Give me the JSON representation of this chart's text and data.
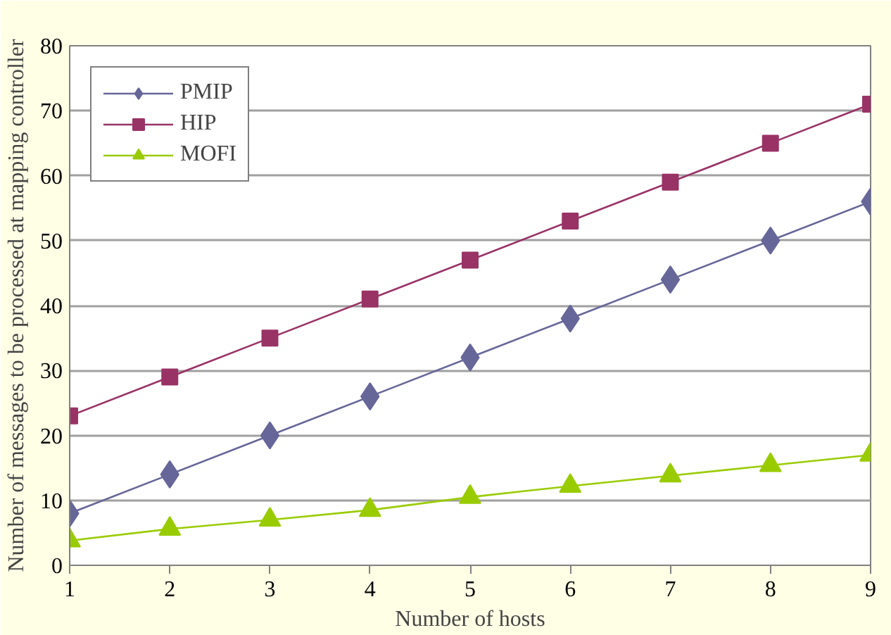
{
  "chart_data": {
    "type": "line",
    "xlabel": "Number of hosts",
    "ylabel": "Number of messages to be processed at mapping controller",
    "x": [
      1,
      2,
      3,
      4,
      5,
      6,
      7,
      8,
      9
    ],
    "xlim": [
      1,
      9
    ],
    "xticks": [
      1,
      2,
      3,
      4,
      5,
      6,
      7,
      8,
      9
    ],
    "ylim": [
      0,
      80
    ],
    "yticks": [
      0,
      10,
      20,
      30,
      40,
      50,
      60,
      70,
      80
    ],
    "grid": "y",
    "legend": "top left",
    "line_style": "solid",
    "series": [
      {
        "name": "PMIP",
        "color": "#666699",
        "marker": "diamond",
        "values": [
          8,
          14,
          20,
          26,
          32,
          38,
          44,
          50,
          56
        ]
      },
      {
        "name": "HIP",
        "color": "#993366",
        "marker": "square",
        "values": [
          23,
          29,
          35,
          41,
          47,
          53,
          59,
          65,
          71
        ]
      },
      {
        "name": "MOFI",
        "color": "#99cc00",
        "marker": "triangle",
        "values": [
          3.8,
          5.6,
          7,
          8.5,
          10.5,
          12.2,
          13.8,
          15.4,
          17
        ]
      }
    ]
  }
}
